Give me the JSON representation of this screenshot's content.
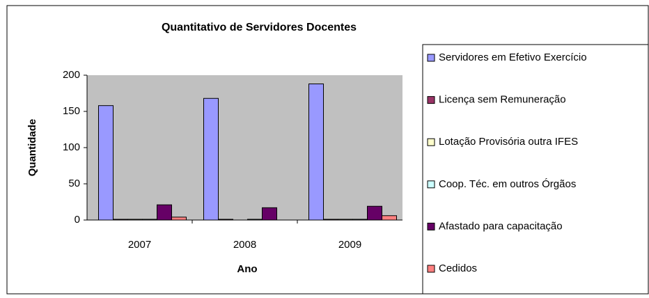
{
  "chart_data": {
    "type": "bar",
    "title": "Quantitativo de Servidores Docentes",
    "x_label": "Ano",
    "y_label": "Quantidade",
    "categories": [
      "2007",
      "2008",
      "2009"
    ],
    "series": [
      {
        "name": "Servidores em Efetivo Exercício",
        "color": "#9999ff",
        "values": [
          158,
          168,
          188
        ]
      },
      {
        "name": "Licença sem Remuneração",
        "color": "#993366",
        "values": [
          1,
          1,
          1
        ]
      },
      {
        "name": "Lotação Provisória outra IFES",
        "color": "#ffffcc",
        "values": [
          1,
          0,
          1
        ]
      },
      {
        "name": "Coop. Téc. em outros Órgãos",
        "color": "#ccffff",
        "values": [
          1,
          1,
          1
        ]
      },
      {
        "name": "Afastado para capacitação",
        "color": "#660066",
        "values": [
          21,
          17,
          19
        ]
      },
      {
        "name": "Cedidos",
        "color": "#ff8080",
        "values": [
          4,
          0,
          6
        ]
      }
    ],
    "ylim": [
      0,
      200
    ],
    "yticks": [
      0,
      50,
      100,
      150,
      200
    ],
    "grid": false,
    "plot_background": "#c0c0c0",
    "legend": "right"
  }
}
